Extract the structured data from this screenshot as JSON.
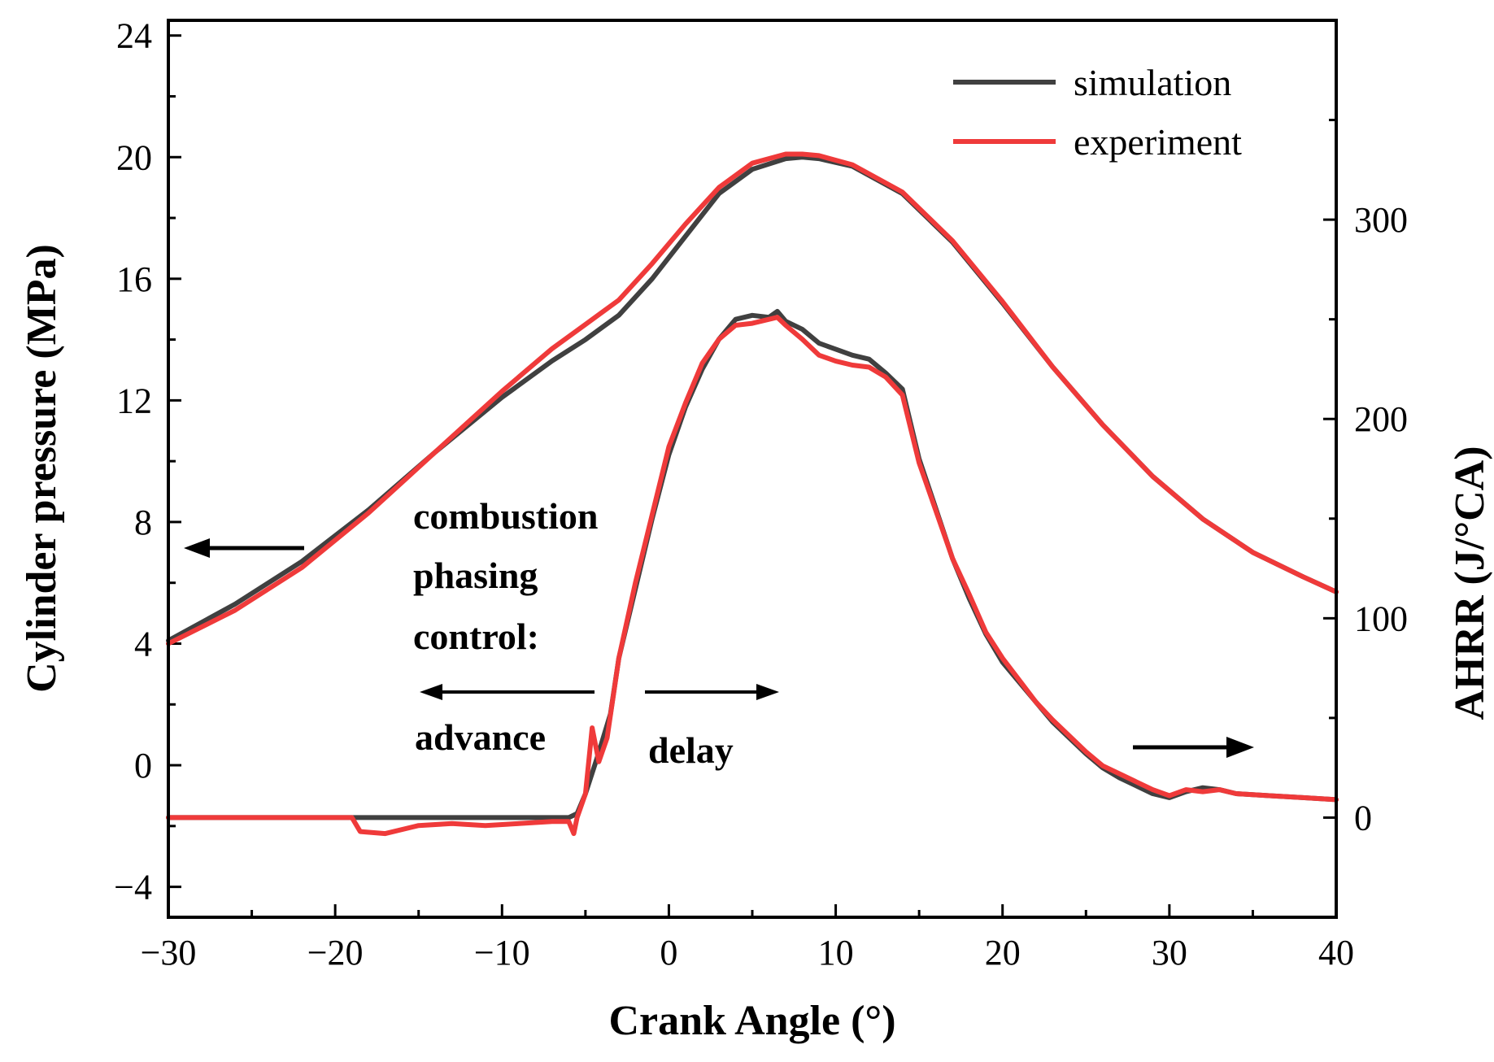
{
  "chart_data": {
    "type": "line",
    "xlabel": "Crank Angle (°)",
    "ylabel_left": "Cylinder pressure (MPa)",
    "ylabel_right": "AHRR (J/°CA)",
    "xlim": [
      -30,
      40
    ],
    "ylim_left": [
      -5,
      24.5
    ],
    "ylim_right": [
      -50,
      400
    ],
    "x_ticks": [
      "−30",
      "−20",
      "−10",
      "0",
      "10",
      "20",
      "30",
      "40"
    ],
    "x_tick_values": [
      -30,
      -20,
      -10,
      0,
      10,
      20,
      30,
      40
    ],
    "y_left_ticks": [
      "−4",
      "0",
      "4",
      "8",
      "12",
      "16",
      "20",
      "24"
    ],
    "y_left_tick_values": [
      -4,
      0,
      4,
      8,
      12,
      16,
      20,
      24
    ],
    "y_right_ticks": [
      "0",
      "100",
      "200",
      "300"
    ],
    "y_right_tick_values": [
      0,
      100,
      200,
      300
    ],
    "legend": [
      {
        "name": "simulation",
        "color": "#404040"
      },
      {
        "name": "experiment",
        "color": "#ef3a3a"
      }
    ],
    "series": [
      {
        "name": "simulation",
        "quantity": "pressure",
        "axis": "left",
        "color": "#404040",
        "x": [
          -30,
          -26,
          -22,
          -18,
          -14,
          -10,
          -7,
          -5,
          -3,
          -1,
          1,
          3,
          5,
          7,
          8,
          9,
          11,
          14,
          17,
          20,
          23,
          26,
          29,
          32,
          35,
          38,
          40
        ],
        "y": [
          4.1,
          5.3,
          6.7,
          8.4,
          10.3,
          12.1,
          13.3,
          14.0,
          14.8,
          16.0,
          17.4,
          18.8,
          19.6,
          19.95,
          20.0,
          19.95,
          19.7,
          18.8,
          17.2,
          15.2,
          13.1,
          11.2,
          9.5,
          8.1,
          7.0,
          6.2,
          5.7
        ]
      },
      {
        "name": "experiment",
        "quantity": "pressure",
        "axis": "left",
        "color": "#ef3a3a",
        "x": [
          -30,
          -26,
          -22,
          -18,
          -14,
          -10,
          -7,
          -5,
          -3,
          -1,
          1,
          3,
          5,
          7,
          8,
          9,
          11,
          14,
          17,
          20,
          23,
          26,
          29,
          32,
          35,
          38,
          40
        ],
        "y": [
          4.0,
          5.1,
          6.5,
          8.3,
          10.3,
          12.3,
          13.7,
          14.5,
          15.3,
          16.5,
          17.8,
          19.0,
          19.8,
          20.1,
          20.1,
          20.05,
          19.75,
          18.85,
          17.25,
          15.25,
          13.1,
          11.2,
          9.5,
          8.1,
          7.0,
          6.2,
          5.7
        ]
      },
      {
        "name": "simulation",
        "quantity": "AHRR",
        "axis": "right",
        "color": "#404040",
        "x": [
          -30,
          -18,
          -10,
          -6,
          -5.5,
          -5,
          -4.3,
          -3.5,
          -3,
          -2,
          -1,
          0,
          1,
          2,
          3,
          4,
          5,
          6,
          6.5,
          7,
          8,
          9,
          10,
          11,
          12,
          13,
          14,
          15,
          16,
          17,
          18,
          19,
          20,
          21,
          22,
          23,
          24,
          25,
          26,
          27,
          28,
          29,
          30,
          31,
          32,
          33,
          34,
          36,
          38,
          40
        ],
        "y": [
          0,
          0,
          0,
          0,
          2,
          12,
          30,
          52,
          80,
          115,
          150,
          182,
          206,
          225,
          240,
          250,
          252,
          251,
          254,
          249,
          245,
          238,
          235,
          232,
          230,
          223,
          215,
          180,
          155,
          130,
          110,
          92,
          78,
          68,
          58,
          48,
          40,
          32,
          25,
          20,
          16,
          12,
          10,
          13,
          15,
          14,
          12,
          11,
          10,
          9
        ]
      },
      {
        "name": "experiment",
        "quantity": "AHRR",
        "axis": "right",
        "color": "#ef3a3a",
        "x": [
          -30,
          -19,
          -18.5,
          -17,
          -15,
          -13,
          -11,
          -9,
          -7,
          -6,
          -5.7,
          -5.5,
          -5,
          -4.6,
          -4.2,
          -3.7,
          -3,
          -2,
          -1,
          0,
          1,
          2,
          3,
          4,
          5,
          6,
          6.5,
          7,
          8,
          9,
          10,
          11,
          12,
          13,
          14,
          15,
          16,
          17,
          18,
          19,
          20,
          21,
          22,
          23,
          24,
          25,
          26,
          27,
          28,
          29,
          30,
          31,
          32,
          33,
          34,
          36,
          38,
          40
        ],
        "y": [
          0,
          0,
          -7,
          -8,
          -4,
          -3,
          -4,
          -3,
          -2,
          -2,
          -8,
          0,
          12,
          45,
          28,
          40,
          80,
          118,
          152,
          186,
          208,
          228,
          240,
          247,
          248,
          250,
          251,
          247,
          240,
          232,
          229,
          227,
          226,
          221,
          212,
          178,
          154,
          130,
          112,
          93,
          80,
          69,
          58,
          49,
          41,
          33,
          26,
          22,
          18,
          14,
          11,
          14,
          13,
          14,
          12,
          11,
          10,
          9
        ]
      }
    ],
    "annotations": [
      {
        "text": "combustion"
      },
      {
        "text": "phasing"
      },
      {
        "text": "control:"
      },
      {
        "text": "advance"
      },
      {
        "text": "delay"
      }
    ]
  }
}
